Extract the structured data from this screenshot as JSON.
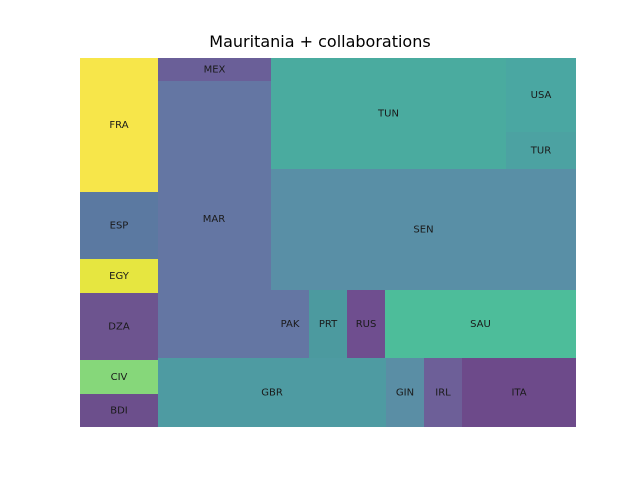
{
  "chart_data": {
    "type": "treemap",
    "title": "Mauritania + collaborations",
    "cells": [
      {
        "label": "FRA",
        "value": 8,
        "color": "#f7e64a"
      },
      {
        "label": "ESP",
        "value": 4,
        "color": "#5b79a1"
      },
      {
        "label": "EGY",
        "value": 2,
        "color": "#e6e640"
      },
      {
        "label": "DZA",
        "value": 4,
        "color": "#6d548f"
      },
      {
        "label": "CIV",
        "value": 2,
        "color": "#86d77a"
      },
      {
        "label": "BDI",
        "value": 2,
        "color": "#6c4f8c"
      },
      {
        "label": "MEX",
        "value": 2,
        "color": "#6a5f98"
      },
      {
        "label": "MAR",
        "value": 25,
        "color": "#6476a3"
      },
      {
        "label": "TUN",
        "value": 21,
        "color": "#4aab9f"
      },
      {
        "label": "USA",
        "value": 5,
        "color": "#4aa7a2"
      },
      {
        "label": "TUR",
        "value": 3,
        "color": "#4ca2a2"
      },
      {
        "label": "SEN",
        "value": 25,
        "color": "#598fa6"
      },
      {
        "label": "PAK",
        "value": 2,
        "color": "#6476a3"
      },
      {
        "label": "PRT",
        "value": 2,
        "color": "#4c9a9f"
      },
      {
        "label": "RUS",
        "value": 2,
        "color": "#6f4e8f"
      },
      {
        "label": "SAU",
        "value": 10,
        "color": "#4dbd9a"
      },
      {
        "label": "GBR",
        "value": 12,
        "color": "#4e9ba2"
      },
      {
        "label": "GIN",
        "value": 2,
        "color": "#5a8ea5"
      },
      {
        "label": "IRL",
        "value": 2,
        "color": "#6d5f98"
      },
      {
        "label": "ITA",
        "value": 6,
        "color": "#6d4a8a"
      }
    ]
  }
}
